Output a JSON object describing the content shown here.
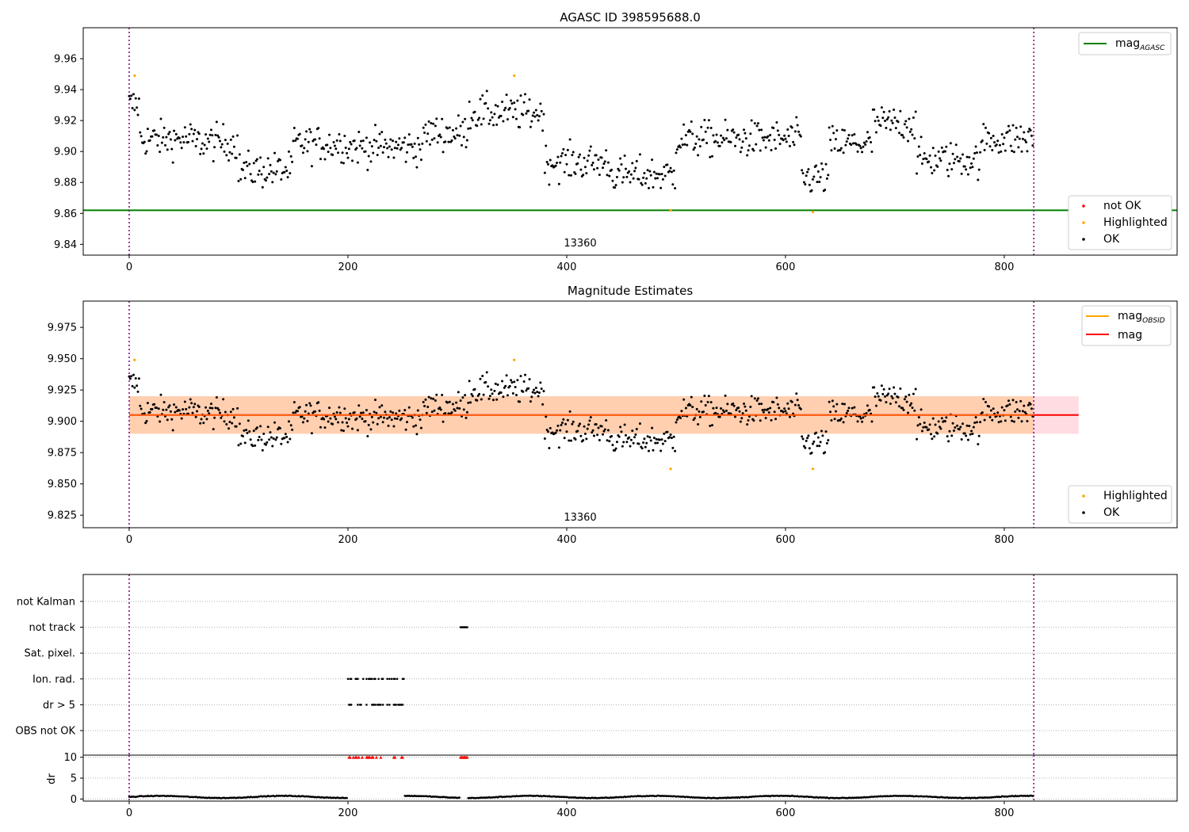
{
  "figure_title": "AGASC ID 398595688.0",
  "chart_data": [
    {
      "type": "scatter",
      "panel": "top",
      "title": "AGASC ID 398595688.0",
      "xlabel": "",
      "ylabel": "",
      "xlim": [
        -42,
        958
      ],
      "ylim": [
        9.833,
        9.98
      ],
      "xticks": [
        0,
        200,
        400,
        600,
        800
      ],
      "yticks": [
        9.84,
        9.86,
        9.88,
        9.9,
        9.92,
        9.94,
        9.96
      ],
      "ytick_labels": [
        "9.84",
        "9.86",
        "9.88",
        "9.90",
        "9.92",
        "9.94",
        "9.96"
      ],
      "obsid_label": "13360",
      "obsid_label_x": 413,
      "vlines_x": [
        0,
        827
      ],
      "agasc_mag": 9.862,
      "series_points": {
        "OK": "synthetic-scatter-of-about-827-points-around-9.905",
        "Highlighted": [
          [
            5,
            9.949
          ],
          [
            352,
            9.949
          ],
          [
            495,
            9.862
          ],
          [
            625,
            9.861
          ]
        ],
        "not OK": []
      },
      "legend_upper": [
        {
          "label": "mag",
          "subscript": "AGASC",
          "color": "#008000"
        }
      ],
      "legend_lower": [
        {
          "label": "not OK",
          "color": "#ff0000"
        },
        {
          "label": "Highlighted",
          "color": "#ffa500"
        },
        {
          "label": "OK",
          "color": "#000000"
        }
      ]
    },
    {
      "type": "scatter",
      "panel": "middle",
      "title": "Magnitude Estimates",
      "xlim": [
        -42,
        958
      ],
      "ylim": [
        9.815,
        9.996
      ],
      "xticks": [
        0,
        200,
        400,
        600,
        800
      ],
      "yticks": [
        9.825,
        9.85,
        9.875,
        9.9,
        9.925,
        9.95,
        9.975
      ],
      "ytick_labels": [
        "9.825",
        "9.850",
        "9.875",
        "9.900",
        "9.925",
        "9.950",
        "9.975"
      ],
      "obsid_label": "13360",
      "obsid_label_x": 413,
      "vlines_x": [
        0,
        827
      ],
      "mag": 9.905,
      "mag_band": [
        9.89,
        9.92
      ],
      "band_x": [
        0,
        868
      ],
      "highlighted": [
        [
          5,
          9.949
        ],
        [
          352,
          9.949
        ],
        [
          495,
          9.862
        ],
        [
          625,
          9.862
        ]
      ],
      "legend_upper": [
        {
          "label": "mag",
          "subscript": "OBSID",
          "color": "#ffa500"
        },
        {
          "label": "mag",
          "subscript": "",
          "color": "#ff0000"
        }
      ],
      "legend_lower": [
        {
          "label": "Highlighted",
          "color": "#ffa500"
        },
        {
          "label": "OK",
          "color": "#000000"
        }
      ]
    },
    {
      "type": "scatter",
      "panel": "flags",
      "xlim": [
        -42,
        958
      ],
      "xticks": [
        0,
        200,
        400,
        600,
        800
      ],
      "flag_rows": [
        "not Kalman",
        "not track",
        "Sat. pixel.",
        "Ion. rad.",
        "dr > 5",
        "OBS not OK"
      ],
      "flags": {
        "not track": [
          [
            303,
            309
          ]
        ],
        "Ion. rad.": [
          [
            200,
            251
          ]
        ],
        "dr > 5": [
          [
            200,
            251
          ]
        ]
      },
      "vlines_x": [
        0,
        827
      ]
    },
    {
      "type": "scatter",
      "panel": "dr",
      "ylabel": "dr",
      "xlim": [
        -42,
        958
      ],
      "ylim": [
        -0.5,
        10.5
      ],
      "yticks": [
        0,
        5,
        10
      ],
      "xticks": [
        0,
        200,
        400,
        600,
        800
      ],
      "clipped_red_ranges": [
        [
          200,
          251
        ],
        [
          303,
          309
        ]
      ],
      "dr_baseline": 0.5,
      "vlines_x": [
        0,
        827
      ]
    }
  ]
}
